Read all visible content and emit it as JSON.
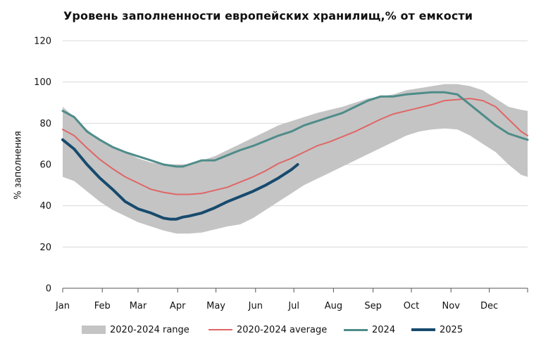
{
  "chart_title": "Уровень заполненности европейских хранилищ,% от емкости",
  "chart_data": {
    "type": "line",
    "title": "Уровень заполненности европейских хранилищ,% от емкости",
    "xlabel": "",
    "ylabel": "% заполнения",
    "ylim": [
      0,
      120
    ],
    "yticks": [
      0,
      20,
      40,
      60,
      80,
      100,
      120
    ],
    "xlim": [
      1,
      365
    ],
    "x_ticks": [
      {
        "label": "Jan",
        "day": 1
      },
      {
        "label": "Feb",
        "day": 32
      },
      {
        "label": "Mar",
        "day": 60
      },
      {
        "label": "Apr",
        "day": 91
      },
      {
        "label": "May",
        "day": 121
      },
      {
        "label": "Jun",
        "day": 152
      },
      {
        "label": "Jul",
        "day": 182
      },
      {
        "label": "Aug",
        "day": 213
      },
      {
        "label": "Sep",
        "day": 244
      },
      {
        "label": "Oct",
        "day": 274
      },
      {
        "label": "Nov",
        "day": 305
      },
      {
        "label": "Dec",
        "day": 335
      }
    ],
    "grid": {
      "horizontal": true,
      "vertical": false
    },
    "legend_position": "bottom",
    "series": [
      {
        "name": "2020-2024 range",
        "kind": "band",
        "color": "#c4c4c4",
        "x": [
          1,
          10,
          20,
          30,
          40,
          50,
          60,
          70,
          80,
          90,
          100,
          110,
          120,
          130,
          140,
          150,
          160,
          170,
          180,
          190,
          200,
          210,
          220,
          230,
          240,
          250,
          260,
          270,
          280,
          290,
          300,
          310,
          320,
          330,
          340,
          350,
          360,
          365
        ],
        "upper": [
          88,
          83,
          77,
          72,
          69,
          66,
          63,
          61,
          60,
          60,
          60,
          62,
          64,
          67,
          70,
          73,
          76,
          79,
          81,
          83,
          85,
          86.5,
          88,
          90,
          92,
          93,
          94,
          96,
          97,
          98,
          99,
          99,
          98,
          96,
          92,
          88,
          86.5,
          86
        ],
        "lower": [
          54,
          52,
          47,
          42,
          38,
          35,
          32,
          30,
          28,
          26.5,
          26.5,
          27,
          28.5,
          30,
          31,
          34,
          38,
          42,
          46,
          50,
          53,
          56,
          59,
          62,
          65,
          68,
          71,
          74,
          76,
          77,
          77.5,
          77,
          74,
          70,
          66,
          60,
          55,
          54
        ]
      },
      {
        "name": "2020-2024 average",
        "kind": "line",
        "color": "#e06666",
        "width": 2,
        "x": [
          1,
          10,
          20,
          30,
          40,
          50,
          60,
          70,
          80,
          90,
          100,
          110,
          120,
          130,
          140,
          150,
          160,
          170,
          180,
          190,
          200,
          210,
          220,
          230,
          240,
          250,
          260,
          270,
          280,
          290,
          300,
          310,
          320,
          330,
          340,
          350,
          360,
          365
        ],
        "values": [
          77,
          74,
          68,
          62.5,
          58,
          54,
          51,
          48,
          46.5,
          45.5,
          45.5,
          46,
          47.5,
          49,
          51.5,
          54,
          57,
          60.5,
          63,
          66,
          69,
          71,
          73.5,
          76,
          79,
          82,
          84.5,
          86,
          87.5,
          89,
          91,
          91.5,
          92,
          91,
          88,
          82,
          76,
          74
        ]
      },
      {
        "name": "2024",
        "kind": "line",
        "color": "#4e8c89",
        "width": 3,
        "x": [
          1,
          10,
          20,
          30,
          40,
          50,
          60,
          70,
          80,
          90,
          95,
          100,
          110,
          120,
          130,
          140,
          150,
          160,
          170,
          180,
          190,
          200,
          210,
          220,
          230,
          240,
          250,
          260,
          270,
          280,
          290,
          300,
          310,
          320,
          330,
          340,
          350,
          360,
          365
        ],
        "values": [
          86,
          83,
          76,
          72,
          68.5,
          66,
          64,
          62,
          60,
          59,
          59,
          60,
          62,
          62,
          64.5,
          67,
          69,
          71.5,
          74,
          76,
          79,
          81,
          83,
          85,
          88,
          91,
          93,
          93,
          94,
          94.5,
          95,
          95,
          94,
          89,
          84,
          79,
          75,
          73,
          72
        ]
      },
      {
        "name": "2025",
        "kind": "line",
        "color": "#174a6e",
        "width": 4,
        "x": [
          1,
          10,
          20,
          30,
          40,
          50,
          60,
          70,
          80,
          85,
          90,
          95,
          100,
          110,
          120,
          130,
          140,
          150,
          160,
          170,
          180,
          185
        ],
        "values": [
          72,
          67.5,
          60,
          53.5,
          48,
          42,
          38.5,
          36.5,
          34,
          33.5,
          33.5,
          34.5,
          35,
          36.5,
          39,
          42,
          44.5,
          47,
          50,
          53.5,
          57.5,
          60
        ]
      }
    ]
  },
  "legend": [
    {
      "label": "2020-2024 range",
      "kind": "band",
      "color": "#c4c4c4"
    },
    {
      "label": "2020-2024 average",
      "kind": "line",
      "color": "#e06666",
      "width": 2
    },
    {
      "label": "2024",
      "kind": "line",
      "color": "#4e8c89",
      "width": 3
    },
    {
      "label": "2025",
      "kind": "line",
      "color": "#174a6e",
      "width": 4
    }
  ]
}
